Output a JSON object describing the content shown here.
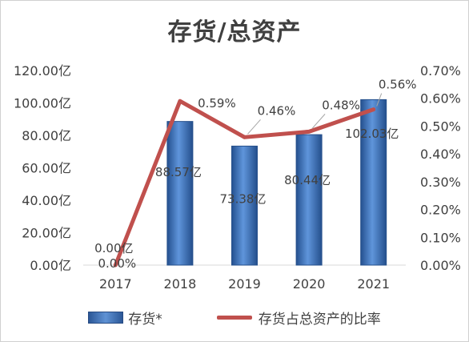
{
  "title": "存货/总资产",
  "chart_data": {
    "type": "bar",
    "title": "存货/总资产",
    "categories": [
      "2017",
      "2018",
      "2019",
      "2020",
      "2021"
    ],
    "series": [
      {
        "name": "存货*",
        "type": "bar",
        "axis": "left",
        "values": [
          0.0,
          88.57,
          73.38,
          80.44,
          102.03
        ],
        "labels": [
          "0.00亿",
          "88.57亿",
          "73.38亿",
          "80.44亿",
          "102.03亿"
        ]
      },
      {
        "name": "存货占总资产的比率",
        "type": "line",
        "axis": "right",
        "values": [
          0.0,
          0.0059,
          0.0046,
          0.0048,
          0.0056
        ],
        "labels": [
          "0.00%",
          "0.59%",
          "0.46%",
          "0.48%",
          "0.56%"
        ]
      }
    ],
    "y_left": {
      "ylim": [
        0,
        120
      ],
      "ticks": [
        "0.00亿",
        "20.00亿",
        "40.00亿",
        "60.00亿",
        "80.00亿",
        "100.00亿",
        "120.00亿"
      ]
    },
    "y_right": {
      "ylim": [
        0,
        0.007
      ],
      "ticks": [
        "0.00%",
        "0.10%",
        "0.20%",
        "0.30%",
        "0.40%",
        "0.50%",
        "0.60%",
        "0.70%"
      ]
    },
    "grid": false,
    "legend_position": "bottom",
    "colors": {
      "bar": "#3a6fc1",
      "line": "#c0504d",
      "text": "#404040"
    }
  }
}
